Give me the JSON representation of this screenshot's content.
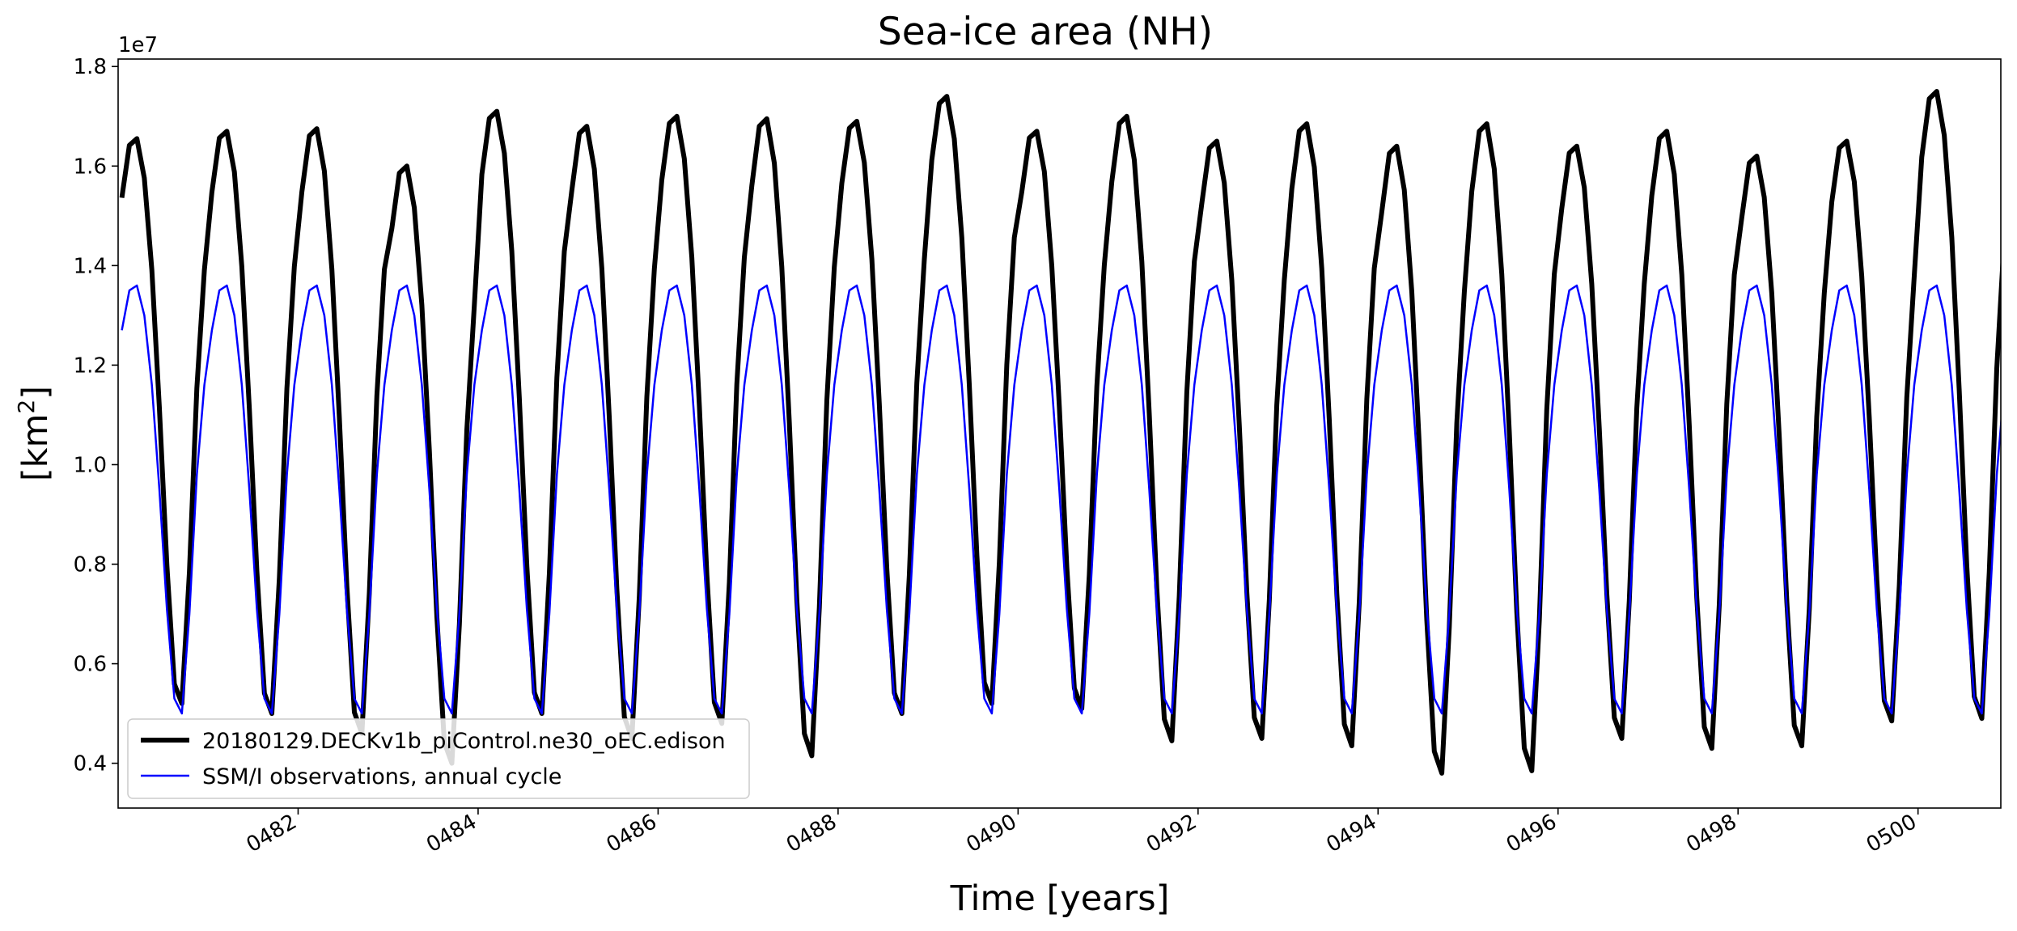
{
  "chart_data": {
    "type": "line",
    "title": "Sea-ice area (NH)",
    "xlabel": "Time [years]",
    "ylabel_main": "[km",
    "ylabel_sup": "2",
    "ylabel_end": "]",
    "y_offset_label": "1e7",
    "xlim": [
      480.0,
      500.92
    ],
    "ylim": [
      0.31,
      1.815
    ],
    "y_scale_note": "values in units of 1e7 km^2",
    "x_ticks": [
      482,
      484,
      486,
      488,
      490,
      492,
      494,
      496,
      498,
      500
    ],
    "x_tick_labels": [
      "0482",
      "0484",
      "0486",
      "0488",
      "0490",
      "0492",
      "0494",
      "0496",
      "0498",
      "0500"
    ],
    "y_ticks": [
      0.4,
      0.6,
      0.8,
      1.0,
      1.2,
      1.4,
      1.6,
      1.8
    ],
    "y_tick_labels": [
      "0.4",
      "0.6",
      "0.8",
      "1.0",
      "1.2",
      "1.4",
      "1.6",
      "1.8"
    ],
    "grid": false,
    "legend_position": "lower-left",
    "obs_annual_cycle": [
      1.27,
      1.35,
      1.36,
      1.3,
      1.16,
      0.95,
      0.71,
      0.53,
      0.5,
      0.7,
      0.98,
      1.16
    ],
    "model_peaks": [
      1.655,
      1.67,
      1.675,
      1.6,
      1.71,
      1.68,
      1.7,
      1.695,
      1.69,
      1.74,
      1.67,
      1.7,
      1.65,
      1.685,
      1.64,
      1.685,
      1.64,
      1.67,
      1.62,
      1.65,
      1.75
    ],
    "model_minima": [
      0.52,
      0.5,
      0.46,
      0.4,
      0.5,
      0.45,
      0.48,
      0.415,
      0.5,
      0.52,
      0.51,
      0.445,
      0.45,
      0.435,
      0.38,
      0.385,
      0.45,
      0.43,
      0.435,
      0.485,
      0.49
    ],
    "series": [
      {
        "name": "20180129.DECKv1b_piControl.ne30_oEC.edison",
        "color": "#000000",
        "line_width": 4.5
      },
      {
        "name": "SSM/I observations, annual cycle",
        "color": "#0000ff",
        "line_width": 1.5
      }
    ]
  }
}
